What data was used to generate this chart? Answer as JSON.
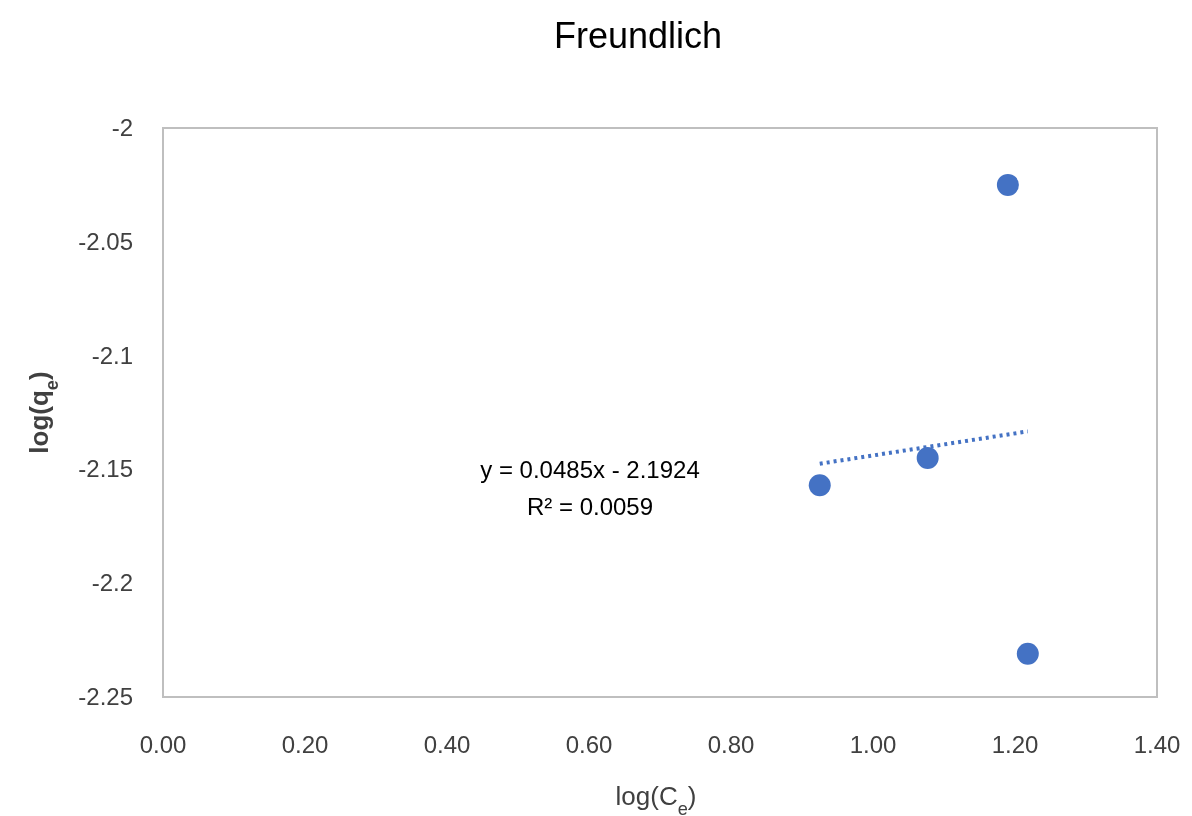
{
  "chart_data": {
    "type": "scatter",
    "title": "Freundlich",
    "xlabel": "log(C$_{e}$)",
    "ylabel": "log(q$_{e}$)",
    "xlim": [
      0,
      1.4
    ],
    "xticks": [
      {
        "value": 0,
        "label": "0.00"
      },
      {
        "value": 0.2,
        "label": "0.20"
      },
      {
        "value": 0.4,
        "label": "0.40"
      },
      {
        "value": 0.6,
        "label": "0.60"
      },
      {
        "value": 0.8,
        "label": "0.80"
      },
      {
        "value": 1,
        "label": "1.00"
      },
      {
        "value": 1.2,
        "label": "1.20"
      },
      {
        "value": 1.4,
        "label": "1.40"
      }
    ],
    "ylim": [
      -2.25,
      -2
    ],
    "yticks": [
      -2.25,
      -2.2,
      -2.15,
      -2.1,
      -2.05,
      -2
    ],
    "grid": false,
    "series": [
      {
        "color": "#4472c4",
        "marker": "circle",
        "x": [
          0.925,
          1.077,
          1.19,
          1.218
        ],
        "values": [
          -2.157,
          -2.145,
          -2.025,
          -2.231
        ]
      },
      {
        "type": "line",
        "color": "#4472c4",
        "marker": "none",
        "line_style": "dotted",
        "x": [
          0.925,
          1.218
        ],
        "values": [
          -2.1475,
          -2.1333
        ]
      }
    ],
    "annotations": [
      "y = 0.0485x - 2.1924",
      "R² = 0.0059"
    ]
  }
}
